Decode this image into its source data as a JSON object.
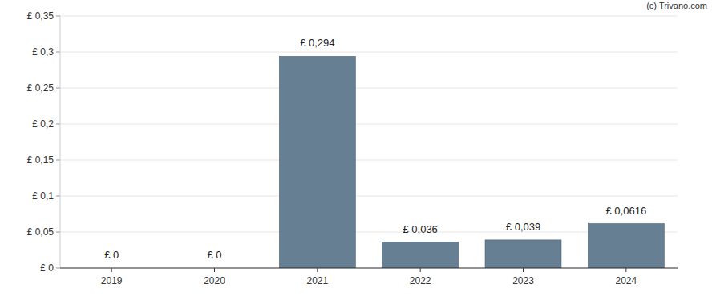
{
  "chart_data": {
    "type": "bar",
    "annotations": [
      "(c) Trivano.com"
    ],
    "categories": [
      "2019",
      "2020",
      "2021",
      "2022",
      "2023",
      "2024"
    ],
    "values": [
      0,
      0,
      0.294,
      0.036,
      0.039,
      0.0616
    ],
    "value_labels": [
      "£ 0",
      "£ 0",
      "£ 0,294",
      "£ 0,036",
      "£ 0,039",
      "£ 0,0616"
    ],
    "color": "#667f92",
    "ylim": [
      0,
      0.35
    ],
    "yticks": [
      {
        "value": 0,
        "label": "£ 0"
      },
      {
        "value": 0.05,
        "label": "£ 0,05"
      },
      {
        "value": 0.1,
        "label": "£ 0,1"
      },
      {
        "value": 0.15,
        "label": "£ 0,15"
      },
      {
        "value": 0.2,
        "label": "£ 0,2"
      },
      {
        "value": 0.25,
        "label": "£ 0,25"
      },
      {
        "value": 0.3,
        "label": "£ 0,3"
      },
      {
        "value": 0.35,
        "label": "£ 0,35"
      }
    ],
    "grid": true,
    "data_labels": true
  }
}
